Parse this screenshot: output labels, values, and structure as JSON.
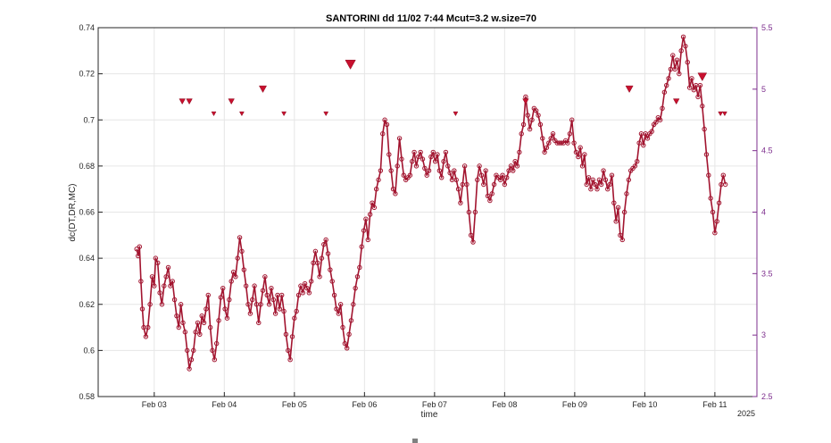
{
  "chart_data": {
    "type": "line",
    "title": "SANTORINI dd 11/02 7:44 Mcut=3.2 w.size=70",
    "xlabel": "time",
    "ylabel": "dc(DT,DR,MC)",
    "year_label": "2025",
    "xlim_days": [
      2.2,
      11.6
    ],
    "ylim": [
      0.58,
      0.74
    ],
    "yticks": [
      0.58,
      0.6,
      0.62,
      0.64,
      0.66,
      0.68,
      0.7,
      0.72,
      0.74
    ],
    "ytick_labels": [
      "0.58",
      "0.6",
      "0.62",
      "0.64",
      "0.66",
      "0.68",
      "0.7",
      "0.72",
      "0.74"
    ],
    "y2lim": [
      2.5,
      5.5
    ],
    "y2ticks": [
      2.5,
      3,
      3.5,
      4,
      4.5,
      5,
      5.5
    ],
    "y2tick_labels": [
      "2.5",
      "3",
      "3.5",
      "4",
      "4.5",
      "5",
      "5.5"
    ],
    "xticks": [
      3,
      4,
      5,
      6,
      7,
      8,
      9,
      10,
      11
    ],
    "xtick_labels": [
      "Feb 03",
      "Feb 04",
      "Feb 05",
      "Feb 06",
      "Feb 07",
      "Feb 08",
      "Feb 09",
      "Feb 10",
      "Feb 11"
    ],
    "grid": true,
    "series": [
      {
        "color": "#a2142f",
        "marker": "circle",
        "points": [
          [
            2.75,
            0.644
          ],
          [
            2.77,
            0.641
          ],
          [
            2.79,
            0.645
          ],
          [
            2.81,
            0.63
          ],
          [
            2.83,
            0.618
          ],
          [
            2.85,
            0.61
          ],
          [
            2.88,
            0.606
          ],
          [
            2.91,
            0.61
          ],
          [
            2.94,
            0.62
          ],
          [
            2.97,
            0.632
          ],
          [
            3.0,
            0.628
          ],
          [
            3.02,
            0.64
          ],
          [
            3.05,
            0.638
          ],
          [
            3.08,
            0.625
          ],
          [
            3.11,
            0.62
          ],
          [
            3.14,
            0.628
          ],
          [
            3.17,
            0.632
          ],
          [
            3.2,
            0.636
          ],
          [
            3.23,
            0.628
          ],
          [
            3.26,
            0.63
          ],
          [
            3.29,
            0.622
          ],
          [
            3.32,
            0.615
          ],
          [
            3.35,
            0.61
          ],
          [
            3.38,
            0.62
          ],
          [
            3.41,
            0.612
          ],
          [
            3.44,
            0.608
          ],
          [
            3.47,
            0.6
          ],
          [
            3.5,
            0.592
          ],
          [
            3.53,
            0.596
          ],
          [
            3.56,
            0.6
          ],
          [
            3.59,
            0.608
          ],
          [
            3.62,
            0.612
          ],
          [
            3.65,
            0.607
          ],
          [
            3.68,
            0.615
          ],
          [
            3.71,
            0.612
          ],
          [
            3.74,
            0.618
          ],
          [
            3.77,
            0.624
          ],
          [
            3.8,
            0.61
          ],
          [
            3.83,
            0.6
          ],
          [
            3.86,
            0.596
          ],
          [
            3.89,
            0.603
          ],
          [
            3.92,
            0.613
          ],
          [
            3.95,
            0.623
          ],
          [
            3.98,
            0.627
          ],
          [
            4.01,
            0.618
          ],
          [
            4.04,
            0.614
          ],
          [
            4.07,
            0.622
          ],
          [
            4.1,
            0.63
          ],
          [
            4.13,
            0.634
          ],
          [
            4.16,
            0.632
          ],
          [
            4.19,
            0.64
          ],
          [
            4.22,
            0.649
          ],
          [
            4.25,
            0.643
          ],
          [
            4.28,
            0.635
          ],
          [
            4.31,
            0.628
          ],
          [
            4.34,
            0.62
          ],
          [
            4.37,
            0.616
          ],
          [
            4.4,
            0.622
          ],
          [
            4.43,
            0.628
          ],
          [
            4.46,
            0.62
          ],
          [
            4.49,
            0.612
          ],
          [
            4.52,
            0.62
          ],
          [
            4.55,
            0.626
          ],
          [
            4.58,
            0.632
          ],
          [
            4.61,
            0.624
          ],
          [
            4.64,
            0.62
          ],
          [
            4.67,
            0.627
          ],
          [
            4.7,
            0.622
          ],
          [
            4.73,
            0.616
          ],
          [
            4.76,
            0.624
          ],
          [
            4.79,
            0.618
          ],
          [
            4.82,
            0.624
          ],
          [
            4.85,
            0.617
          ],
          [
            4.88,
            0.607
          ],
          [
            4.91,
            0.6
          ],
          [
            4.94,
            0.596
          ],
          [
            4.97,
            0.606
          ],
          [
            5.0,
            0.614
          ],
          [
            5.03,
            0.617
          ],
          [
            5.06,
            0.624
          ],
          [
            5.09,
            0.628
          ],
          [
            5.12,
            0.625
          ],
          [
            5.15,
            0.629
          ],
          [
            5.18,
            0.627
          ],
          [
            5.21,
            0.625
          ],
          [
            5.24,
            0.63
          ],
          [
            5.27,
            0.638
          ],
          [
            5.3,
            0.643
          ],
          [
            5.33,
            0.638
          ],
          [
            5.36,
            0.632
          ],
          [
            5.39,
            0.64
          ],
          [
            5.42,
            0.646
          ],
          [
            5.45,
            0.648
          ],
          [
            5.48,
            0.642
          ],
          [
            5.51,
            0.635
          ],
          [
            5.54,
            0.63
          ],
          [
            5.57,
            0.624
          ],
          [
            5.6,
            0.618
          ],
          [
            5.63,
            0.616
          ],
          [
            5.66,
            0.62
          ],
          [
            5.69,
            0.61
          ],
          [
            5.72,
            0.603
          ],
          [
            5.75,
            0.601
          ],
          [
            5.78,
            0.607
          ],
          [
            5.81,
            0.613
          ],
          [
            5.84,
            0.62
          ],
          [
            5.87,
            0.627
          ],
          [
            5.9,
            0.632
          ],
          [
            5.93,
            0.636
          ],
          [
            5.96,
            0.645
          ],
          [
            5.99,
            0.652
          ],
          [
            6.02,
            0.657
          ],
          [
            6.05,
            0.648
          ],
          [
            6.08,
            0.659
          ],
          [
            6.11,
            0.664
          ],
          [
            6.14,
            0.662
          ],
          [
            6.17,
            0.67
          ],
          [
            6.2,
            0.674
          ],
          [
            6.23,
            0.678
          ],
          [
            6.26,
            0.694
          ],
          [
            6.29,
            0.7
          ],
          [
            6.32,
            0.698
          ],
          [
            6.35,
            0.685
          ],
          [
            6.38,
            0.678
          ],
          [
            6.41,
            0.67
          ],
          [
            6.44,
            0.668
          ],
          [
            6.47,
            0.68
          ],
          [
            6.5,
            0.692
          ],
          [
            6.53,
            0.683
          ],
          [
            6.56,
            0.676
          ],
          [
            6.59,
            0.674
          ],
          [
            6.62,
            0.675
          ],
          [
            6.65,
            0.676
          ],
          [
            6.68,
            0.682
          ],
          [
            6.71,
            0.686
          ],
          [
            6.74,
            0.68
          ],
          [
            6.77,
            0.684
          ],
          [
            6.8,
            0.686
          ],
          [
            6.83,
            0.683
          ],
          [
            6.86,
            0.679
          ],
          [
            6.89,
            0.676
          ],
          [
            6.92,
            0.678
          ],
          [
            6.95,
            0.684
          ],
          [
            6.98,
            0.686
          ],
          [
            7.01,
            0.682
          ],
          [
            7.04,
            0.685
          ],
          [
            7.07,
            0.678
          ],
          [
            7.1,
            0.675
          ],
          [
            7.13,
            0.682
          ],
          [
            7.16,
            0.686
          ],
          [
            7.19,
            0.68
          ],
          [
            7.22,
            0.677
          ],
          [
            7.25,
            0.674
          ],
          [
            7.28,
            0.678
          ],
          [
            7.31,
            0.674
          ],
          [
            7.34,
            0.67
          ],
          [
            7.37,
            0.664
          ],
          [
            7.4,
            0.672
          ],
          [
            7.43,
            0.68
          ],
          [
            7.46,
            0.672
          ],
          [
            7.49,
            0.66
          ],
          [
            7.52,
            0.65
          ],
          [
            7.55,
            0.647
          ],
          [
            7.58,
            0.66
          ],
          [
            7.61,
            0.674
          ],
          [
            7.64,
            0.68
          ],
          [
            7.67,
            0.676
          ],
          [
            7.7,
            0.672
          ],
          [
            7.73,
            0.678
          ],
          [
            7.76,
            0.667
          ],
          [
            7.79,
            0.665
          ],
          [
            7.82,
            0.668
          ],
          [
            7.85,
            0.672
          ],
          [
            7.88,
            0.676
          ],
          [
            7.91,
            0.675
          ],
          [
            7.94,
            0.674
          ],
          [
            7.97,
            0.676
          ],
          [
            8.0,
            0.672
          ],
          [
            8.03,
            0.675
          ],
          [
            8.06,
            0.678
          ],
          [
            8.09,
            0.68
          ],
          [
            8.12,
            0.678
          ],
          [
            8.15,
            0.682
          ],
          [
            8.18,
            0.68
          ],
          [
            8.21,
            0.686
          ],
          [
            8.24,
            0.694
          ],
          [
            8.27,
            0.698
          ],
          [
            8.3,
            0.71
          ],
          [
            8.33,
            0.702
          ],
          [
            8.36,
            0.696
          ],
          [
            8.39,
            0.7
          ],
          [
            8.42,
            0.705
          ],
          [
            8.45,
            0.704
          ],
          [
            8.48,
            0.702
          ],
          [
            8.51,
            0.698
          ],
          [
            8.54,
            0.692
          ],
          [
            8.57,
            0.686
          ],
          [
            8.6,
            0.688
          ],
          [
            8.63,
            0.69
          ],
          [
            8.66,
            0.692
          ],
          [
            8.69,
            0.694
          ],
          [
            8.72,
            0.691
          ],
          [
            8.75,
            0.69
          ],
          [
            8.78,
            0.69
          ],
          [
            8.81,
            0.69
          ],
          [
            8.84,
            0.69
          ],
          [
            8.87,
            0.691
          ],
          [
            8.9,
            0.69
          ],
          [
            8.93,
            0.694
          ],
          [
            8.96,
            0.7
          ],
          [
            8.99,
            0.69
          ],
          [
            9.02,
            0.686
          ],
          [
            9.05,
            0.684
          ],
          [
            9.08,
            0.688
          ],
          [
            9.11,
            0.68
          ],
          [
            9.14,
            0.685
          ],
          [
            9.17,
            0.672
          ],
          [
            9.2,
            0.675
          ],
          [
            9.23,
            0.67
          ],
          [
            9.26,
            0.674
          ],
          [
            9.29,
            0.672
          ],
          [
            9.32,
            0.67
          ],
          [
            9.35,
            0.674
          ],
          [
            9.38,
            0.672
          ],
          [
            9.41,
            0.678
          ],
          [
            9.44,
            0.674
          ],
          [
            9.47,
            0.67
          ],
          [
            9.5,
            0.672
          ],
          [
            9.53,
            0.676
          ],
          [
            9.56,
            0.664
          ],
          [
            9.59,
            0.656
          ],
          [
            9.62,
            0.662
          ],
          [
            9.65,
            0.65
          ],
          [
            9.68,
            0.648
          ],
          [
            9.71,
            0.66
          ],
          [
            9.74,
            0.668
          ],
          [
            9.77,
            0.674
          ],
          [
            9.8,
            0.678
          ],
          [
            9.83,
            0.679
          ],
          [
            9.86,
            0.68
          ],
          [
            9.89,
            0.682
          ],
          [
            9.92,
            0.69
          ],
          [
            9.95,
            0.694
          ],
          [
            9.98,
            0.689
          ],
          [
            10.01,
            0.694
          ],
          [
            10.04,
            0.692
          ],
          [
            10.07,
            0.694
          ],
          [
            10.1,
            0.695
          ],
          [
            10.13,
            0.698
          ],
          [
            10.16,
            0.699
          ],
          [
            10.19,
            0.701
          ],
          [
            10.22,
            0.7
          ],
          [
            10.25,
            0.705
          ],
          [
            10.28,
            0.712
          ],
          [
            10.31,
            0.715
          ],
          [
            10.34,
            0.718
          ],
          [
            10.37,
            0.722
          ],
          [
            10.4,
            0.728
          ],
          [
            10.43,
            0.722
          ],
          [
            10.46,
            0.726
          ],
          [
            10.49,
            0.72
          ],
          [
            10.52,
            0.73
          ],
          [
            10.55,
            0.736
          ],
          [
            10.58,
            0.732
          ],
          [
            10.61,
            0.725
          ],
          [
            10.64,
            0.714
          ],
          [
            10.67,
            0.718
          ],
          [
            10.7,
            0.713
          ],
          [
            10.73,
            0.715
          ],
          [
            10.76,
            0.71
          ],
          [
            10.79,
            0.715
          ],
          [
            10.82,
            0.706
          ],
          [
            10.85,
            0.696
          ],
          [
            10.88,
            0.685
          ],
          [
            10.91,
            0.676
          ],
          [
            10.94,
            0.666
          ],
          [
            10.97,
            0.66
          ],
          [
            11.0,
            0.651
          ],
          [
            11.03,
            0.656
          ],
          [
            11.06,
            0.664
          ],
          [
            11.09,
            0.672
          ],
          [
            11.12,
            0.676
          ],
          [
            11.15,
            0.672
          ]
        ]
      }
    ],
    "events": [
      {
        "t": 3.4,
        "magnitude": 4.9
      },
      {
        "t": 3.5,
        "magnitude": 4.9
      },
      {
        "t": 3.85,
        "magnitude": 4.8
      },
      {
        "t": 4.1,
        "magnitude": 4.9
      },
      {
        "t": 4.25,
        "magnitude": 4.8
      },
      {
        "t": 4.55,
        "magnitude": 5.0
      },
      {
        "t": 4.85,
        "magnitude": 4.8
      },
      {
        "t": 5.45,
        "magnitude": 4.8
      },
      {
        "t": 5.8,
        "magnitude": 5.2
      },
      {
        "t": 7.3,
        "magnitude": 4.8
      },
      {
        "t": 8.3,
        "magnitude": 4.9
      },
      {
        "t": 9.78,
        "magnitude": 5.0
      },
      {
        "t": 10.45,
        "magnitude": 4.9
      },
      {
        "t": 10.82,
        "magnitude": 5.1
      },
      {
        "t": 11.08,
        "magnitude": 4.8
      },
      {
        "t": 11.14,
        "magnitude": 4.8
      }
    ]
  }
}
